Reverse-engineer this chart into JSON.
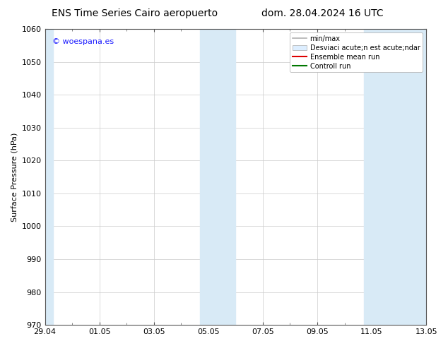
{
  "title_left": "ENS Time Series Cairo aeropuerto",
  "title_right": "dom. 28.04.2024 16 UTC",
  "ylabel": "Surface Pressure (hPa)",
  "ylim": [
    970,
    1060
  ],
  "yticks": [
    970,
    980,
    990,
    1000,
    1010,
    1020,
    1030,
    1040,
    1050,
    1060
  ],
  "xtick_labels": [
    "29.04",
    "01.05",
    "03.05",
    "05.05",
    "07.05",
    "09.05",
    "11.05",
    "13.05"
  ],
  "xtick_positions": [
    0,
    2,
    4,
    6,
    8,
    10,
    12,
    14
  ],
  "xlim": [
    0,
    14
  ],
  "shaded_bands": [
    {
      "x_start": 0.0,
      "x_end": 0.3
    },
    {
      "x_start": 5.7,
      "x_end": 7.0
    },
    {
      "x_start": 11.7,
      "x_end": 14.0
    }
  ],
  "watermark_text": "© woespana.es",
  "watermark_color": "#1a1aff",
  "background_color": "#ffffff",
  "plot_bg_color": "#ffffff",
  "band_color": "#d8eaf6",
  "legend_entries": [
    {
      "label": "min/max",
      "color": "#b0b0b0",
      "lw": 1.2
    },
    {
      "label": "Desviaci acute;n est acute;ndar",
      "color": "#ddeeff",
      "lw": 8
    },
    {
      "label": "Ensemble mean run",
      "color": "#dd0000",
      "lw": 1.5
    },
    {
      "label": "Controll run",
      "color": "#007700",
      "lw": 1.5
    }
  ],
  "title_fontsize": 10,
  "ylabel_fontsize": 8,
  "tick_fontsize": 8,
  "legend_fontsize": 7,
  "watermark_fontsize": 8
}
